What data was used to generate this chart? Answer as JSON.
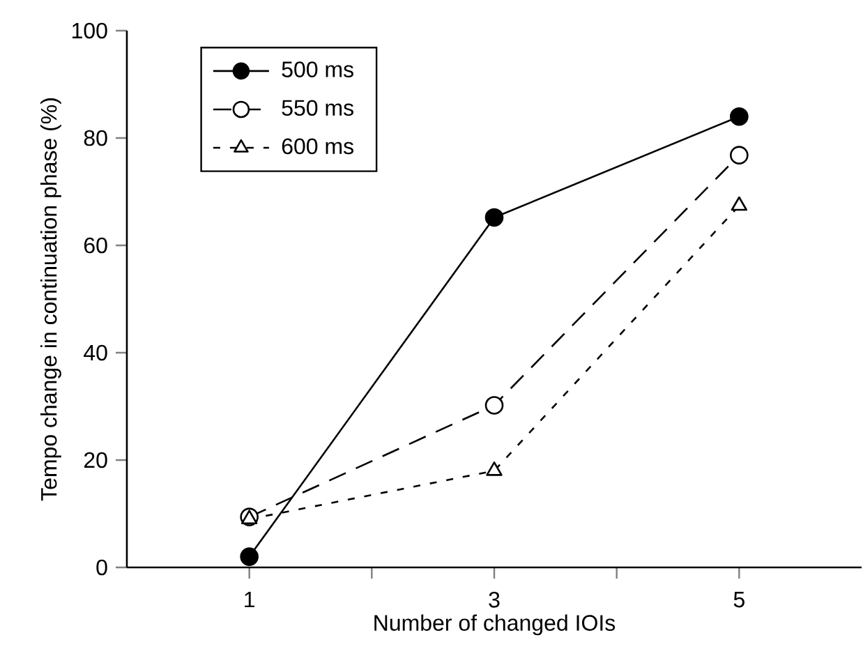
{
  "chart_data": {
    "type": "line",
    "xlabel": "Number of changed IOIs",
    "ylabel": "Tempo change in continuation phase (%)",
    "x": [
      1,
      3,
      5
    ],
    "series": [
      {
        "name": "500 ms",
        "color": "#000000",
        "marker": "circle",
        "line_style": "solid",
        "values": [
          2,
          65.2,
          84
        ]
      },
      {
        "name": "550 ms",
        "color": "#000000",
        "marker": "circle",
        "line_style": "dashed",
        "values": [
          9.4,
          30.2,
          76.8
        ]
      },
      {
        "name": "600 ms",
        "color": "#000000",
        "marker": "triangle",
        "line_style": "dotted",
        "values": [
          9,
          18,
          67.4
        ]
      }
    ],
    "xlim": [
      0,
      6
    ],
    "ylim": [
      0,
      100
    ],
    "xticks": [
      {
        "value": 1,
        "label": "1"
      },
      {
        "value": 2,
        "label": null
      },
      {
        "value": 3,
        "label": "3"
      },
      {
        "value": 4,
        "label": null
      },
      {
        "value": 5,
        "label": "5"
      }
    ],
    "yticks": [
      0,
      20,
      40,
      60,
      80,
      100
    ],
    "grid": false,
    "legend": "top left"
  }
}
